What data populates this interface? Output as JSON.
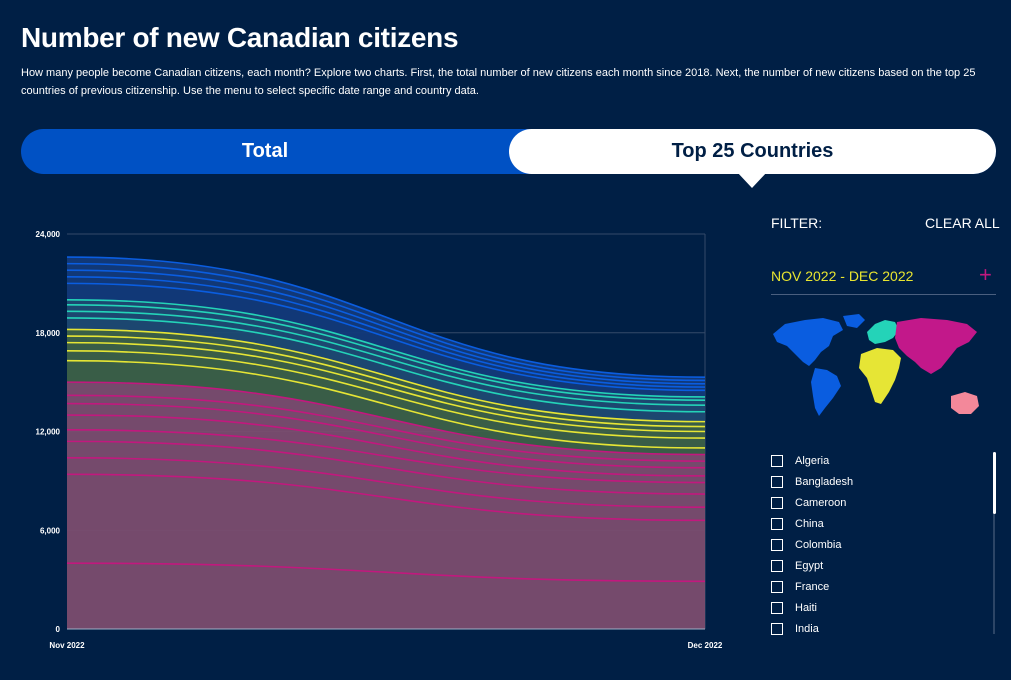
{
  "header": {
    "title": "Number of new Canadian citizens",
    "subtitle": "How many people become Canadian citizens, each month? Explore two charts. First, the total number of new citizens each month since 2018. Next, the number of new citizens based on the top 25 countries of previous citizenship. Use the menu to select specific date range and country data."
  },
  "tabs": {
    "total_label": "Total",
    "top25_label": "Top 25 Countries",
    "active": "Top 25 Countries"
  },
  "filter": {
    "label": "FILTER:",
    "clear_label": "CLEAR ALL",
    "date_range": "NOV 2022 - DEC 2022",
    "plus_icon": "plus-icon"
  },
  "map": {
    "regions": [
      {
        "name": "north-america",
        "color": "#0a5de0"
      },
      {
        "name": "south-america",
        "color": "#0a5de0"
      },
      {
        "name": "europe",
        "color": "#24d3b8"
      },
      {
        "name": "africa",
        "color": "#e6e535"
      },
      {
        "name": "asia",
        "color": "#c2188a"
      },
      {
        "name": "oceania",
        "color": "#f3889a"
      }
    ]
  },
  "countries": [
    "Algeria",
    "Bangladesh",
    "Cameroon",
    "China",
    "Colombia",
    "Egypt",
    "France",
    "Haiti",
    "India"
  ],
  "chart_data": {
    "type": "area",
    "x": [
      "Nov 2022",
      "Dec 2022"
    ],
    "ylim": [
      0,
      24000
    ],
    "yticks": [
      0,
      6000,
      12000,
      18000,
      24000
    ],
    "ytick_labels": [
      "0",
      "6,000",
      "12,000",
      "18,000",
      "24,000"
    ],
    "grid": true,
    "stacked_boundaries": [
      {
        "group": "asia",
        "color": "#c2187e",
        "values": [
          4000,
          2900
        ]
      },
      {
        "group": "asia",
        "color": "#c2187e",
        "values": [
          9400,
          6600
        ]
      },
      {
        "group": "asia",
        "color": "#c2187e",
        "values": [
          10400,
          7400
        ]
      },
      {
        "group": "asia",
        "color": "#c2187e",
        "values": [
          11400,
          8200
        ]
      },
      {
        "group": "asia",
        "color": "#c2187e",
        "values": [
          12100,
          8900
        ]
      },
      {
        "group": "asia",
        "color": "#c2187e",
        "values": [
          13000,
          9300
        ]
      },
      {
        "group": "asia",
        "color": "#c2187e",
        "values": [
          13700,
          9800
        ]
      },
      {
        "group": "asia",
        "color": "#c2187e",
        "values": [
          14200,
          10200
        ]
      },
      {
        "group": "asia",
        "color": "#c2187e",
        "values": [
          15000,
          10600
        ]
      },
      {
        "group": "africa",
        "color": "#e6e535",
        "values": [
          16300,
          11000
        ]
      },
      {
        "group": "africa",
        "color": "#e6e535",
        "values": [
          16900,
          11600
        ]
      },
      {
        "group": "africa",
        "color": "#e6e535",
        "values": [
          17400,
          12000
        ]
      },
      {
        "group": "africa",
        "color": "#e6e535",
        "values": [
          17800,
          12300
        ]
      },
      {
        "group": "africa",
        "color": "#e6e535",
        "values": [
          18200,
          12600
        ]
      },
      {
        "group": "europe",
        "color": "#24d3b8",
        "values": [
          18900,
          13200
        ]
      },
      {
        "group": "europe",
        "color": "#24d3b8",
        "values": [
          19300,
          13600
        ]
      },
      {
        "group": "europe",
        "color": "#24d3b8",
        "values": [
          19700,
          13900
        ]
      },
      {
        "group": "europe",
        "color": "#24d3b8",
        "values": [
          20000,
          14100
        ]
      },
      {
        "group": "americas",
        "color": "#0a5de0",
        "values": [
          21000,
          14500
        ]
      },
      {
        "group": "americas",
        "color": "#0a5de0",
        "values": [
          21400,
          14700
        ]
      },
      {
        "group": "americas",
        "color": "#0a5de0",
        "values": [
          21800,
          14900
        ]
      },
      {
        "group": "americas",
        "color": "#0a5de0",
        "values": [
          22200,
          15100
        ]
      },
      {
        "group": "americas",
        "color": "#0a5de0",
        "values": [
          22600,
          15300
        ]
      }
    ],
    "group_fill_colors": {
      "asia": "#7b4d6f",
      "africa": "#3c6148",
      "europe": "#1d4a73",
      "americas": "#123a7a"
    }
  }
}
